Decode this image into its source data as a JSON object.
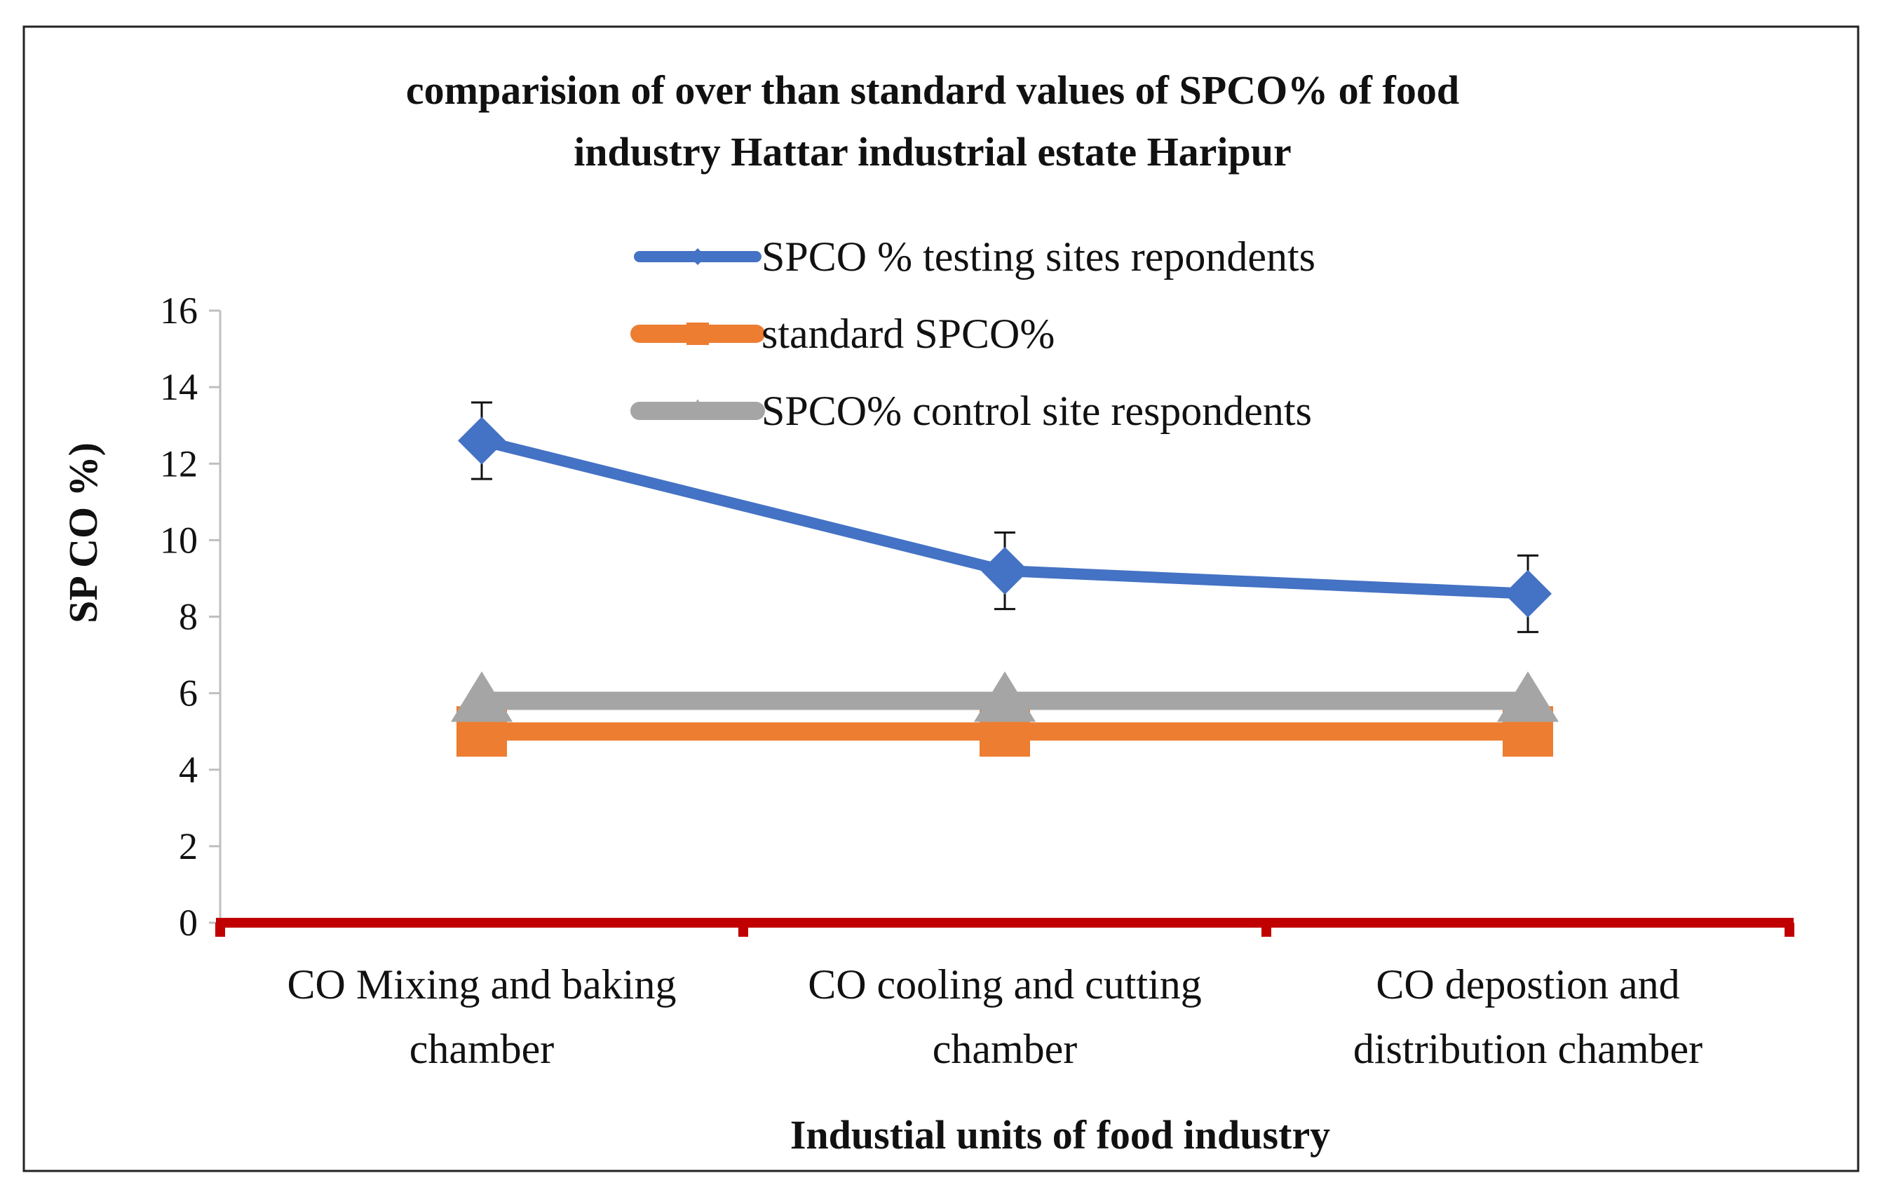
{
  "chart_data": {
    "type": "line",
    "title_lines": [
      "comparision of over than standard values of  SPCO% of food",
      "industry Hattar industrial estate Haripur"
    ],
    "ylabel": "SP CO %)",
    "xlabel": "Industial units of food industry",
    "ylim": [
      0,
      16
    ],
    "yticks": [
      0,
      2,
      4,
      6,
      8,
      10,
      12,
      14,
      16
    ],
    "ytick_labels": [
      "0",
      "2",
      "4",
      "6",
      "8",
      "10",
      "12",
      "14",
      "16"
    ],
    "categories": [
      [
        "CO Mixing and baking",
        "chamber"
      ],
      [
        "CO cooling and cutting",
        "chamber"
      ],
      [
        "CO depostion and",
        "distribution chamber"
      ]
    ],
    "legend_position": "top",
    "series": [
      {
        "name": "SPCO % testing sites repondents",
        "color": "#4472c4",
        "marker": "diamond",
        "values": [
          12.6,
          9.2,
          8.6
        ],
        "error": [
          1.0,
          1.0,
          1.0
        ]
      },
      {
        "name": "standard SPCO%",
        "color": "#ed7d31",
        "marker": "square",
        "values": [
          5,
          5,
          5
        ]
      },
      {
        "name": " SPCO% control site respondents",
        "color": "#a5a5a5",
        "marker": "triangle",
        "values": [
          5.8,
          5.8,
          5.8
        ]
      }
    ],
    "x_axis_color": "#c00000"
  }
}
